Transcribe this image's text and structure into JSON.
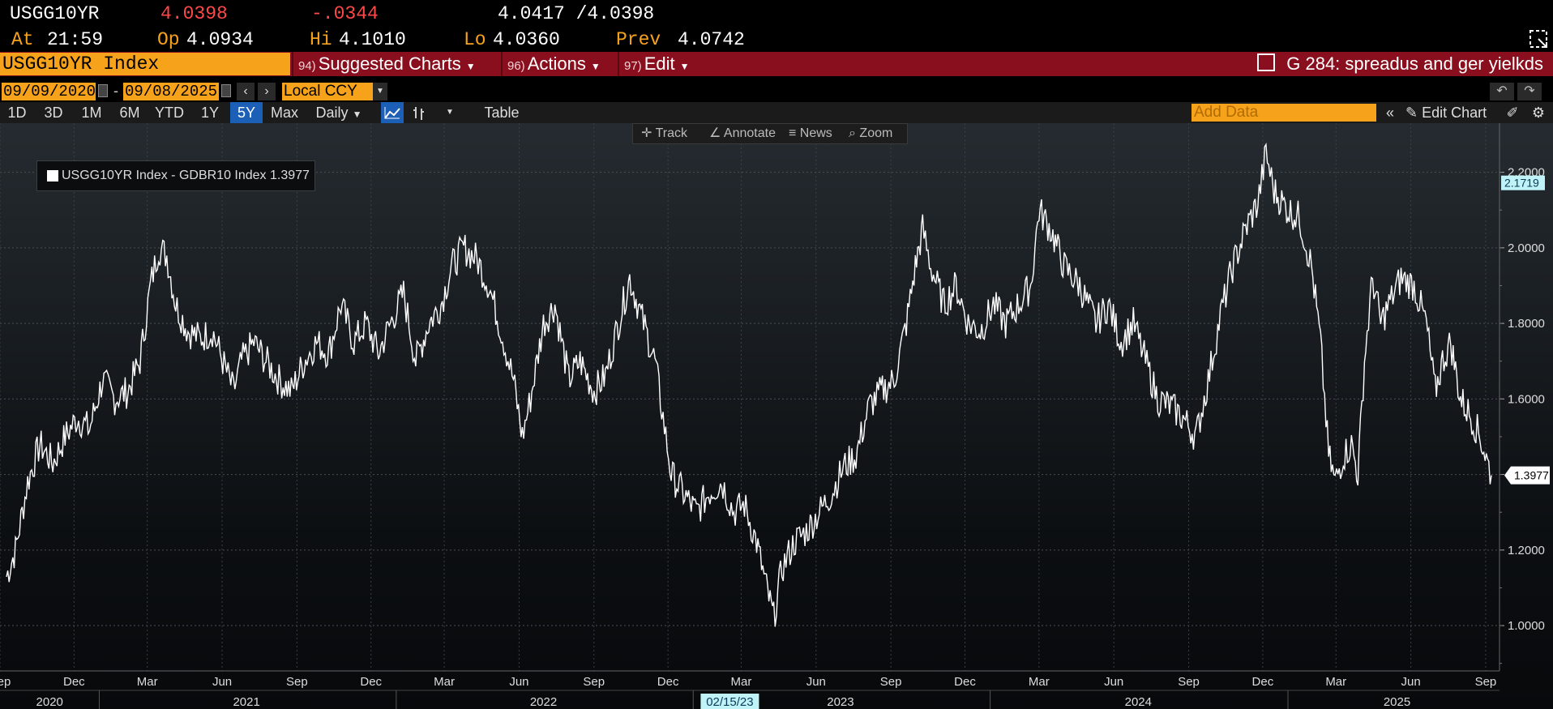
{
  "quote": {
    "ticker": "USGG10YR",
    "last": "4.0398",
    "change": "-.0344",
    "bid_ask": "4.0417 /4.0398",
    "at_label": "At",
    "at_value": "21:59",
    "open_label": "Op",
    "open_value": "4.0934",
    "high_label": "Hi",
    "high_value": "4.1010",
    "low_label": "Lo",
    "low_value": "4.0360",
    "prev_label": "Prev",
    "prev_value": "4.0742"
  },
  "cmdbar": {
    "security": "USGG10YR Index",
    "menus": [
      {
        "num": "94)",
        "label": "Suggested Charts"
      },
      {
        "num": "96)",
        "label": "Actions"
      },
      {
        "num": "97)",
        "label": "Edit"
      }
    ],
    "graph_title": "G 284: spreadus and ger yielkds"
  },
  "daterange": {
    "start": "09/09/2020",
    "sep": "-",
    "end": "09/08/2025",
    "currency": "Local CCY"
  },
  "toolbar": {
    "periods": [
      "1D",
      "3D",
      "1M",
      "6M",
      "YTD",
      "1Y",
      "5Y",
      "Max"
    ],
    "active_period": "5Y",
    "frequency": "Daily",
    "table_label": "Table",
    "add_data_placeholder": "Add Data",
    "edit_chart_label": "Edit Chart"
  },
  "chart_tools": [
    "Track",
    "Annotate",
    "News",
    "Zoom"
  ],
  "colors": {
    "accent_orange": "#f7a21b",
    "bar_red": "#8a0f1e",
    "series_line": "#ffffff",
    "marker_cyan": "#bff3f7",
    "active_blue": "#1c5fb7"
  },
  "chart_data": {
    "type": "line",
    "legend": "USGG10YR Index - GDBR10 Index 1.3977",
    "series": [
      {
        "name": "USGG10YR Index - GDBR10 Index",
        "last_value": "1.3977",
        "points": [
          [
            "2020-09-09",
            1.13
          ],
          [
            "2020-09-20",
            1.2
          ],
          [
            "2020-10-05",
            1.38
          ],
          [
            "2020-10-20",
            1.48
          ],
          [
            "2020-11-05",
            1.43
          ],
          [
            "2020-11-20",
            1.5
          ],
          [
            "2020-12-05",
            1.55
          ],
          [
            "2020-12-20",
            1.52
          ],
          [
            "2021-01-05",
            1.65
          ],
          [
            "2021-01-20",
            1.6
          ],
          [
            "2021-02-05",
            1.62
          ],
          [
            "2021-02-20",
            1.7
          ],
          [
            "2021-03-05",
            1.9
          ],
          [
            "2021-03-15",
            2.0
          ],
          [
            "2021-03-25",
            1.98
          ],
          [
            "2021-04-05",
            1.85
          ],
          [
            "2021-04-20",
            1.78
          ],
          [
            "2021-05-05",
            1.76
          ],
          [
            "2021-05-20",
            1.78
          ],
          [
            "2021-06-05",
            1.68
          ],
          [
            "2021-06-15",
            1.62
          ],
          [
            "2021-06-25",
            1.7
          ],
          [
            "2021-07-10",
            1.75
          ],
          [
            "2021-07-25",
            1.7
          ],
          [
            "2021-08-10",
            1.65
          ],
          [
            "2021-08-25",
            1.62
          ],
          [
            "2021-09-10",
            1.7
          ],
          [
            "2021-09-25",
            1.75
          ],
          [
            "2021-10-10",
            1.72
          ],
          [
            "2021-10-25",
            1.85
          ],
          [
            "2021-11-10",
            1.75
          ],
          [
            "2021-11-25",
            1.8
          ],
          [
            "2021-12-10",
            1.72
          ],
          [
            "2021-12-25",
            1.8
          ],
          [
            "2022-01-10",
            1.88
          ],
          [
            "2022-01-25",
            1.7
          ],
          [
            "2022-02-10",
            1.8
          ],
          [
            "2022-02-25",
            1.85
          ],
          [
            "2022-03-10",
            1.95
          ],
          [
            "2022-03-25",
            2.0
          ],
          [
            "2022-04-10",
            1.97
          ],
          [
            "2022-04-25",
            1.9
          ],
          [
            "2022-05-10",
            1.78
          ],
          [
            "2022-05-25",
            1.65
          ],
          [
            "2022-06-05",
            1.5
          ],
          [
            "2022-06-15",
            1.6
          ],
          [
            "2022-07-01",
            1.8
          ],
          [
            "2022-07-15",
            1.85
          ],
          [
            "2022-08-01",
            1.65
          ],
          [
            "2022-08-15",
            1.7
          ],
          [
            "2022-09-01",
            1.62
          ],
          [
            "2022-09-15",
            1.66
          ],
          [
            "2022-10-01",
            1.8
          ],
          [
            "2022-10-15",
            1.92
          ],
          [
            "2022-11-01",
            1.8
          ],
          [
            "2022-11-15",
            1.7
          ],
          [
            "2022-11-25",
            1.55
          ],
          [
            "2022-12-05",
            1.4
          ],
          [
            "2022-12-20",
            1.35
          ],
          [
            "2023-01-05",
            1.3
          ],
          [
            "2023-01-20",
            1.35
          ],
          [
            "2023-02-05",
            1.38
          ],
          [
            "2023-02-20",
            1.3
          ],
          [
            "2023-03-05",
            1.32
          ],
          [
            "2023-03-20",
            1.22
          ],
          [
            "2023-04-01",
            1.1
          ],
          [
            "2023-04-10",
            1.02
          ],
          [
            "2023-04-20",
            1.15
          ],
          [
            "2023-05-05",
            1.22
          ],
          [
            "2023-05-20",
            1.25
          ],
          [
            "2023-06-05",
            1.3
          ],
          [
            "2023-06-20",
            1.35
          ],
          [
            "2023-07-05",
            1.42
          ],
          [
            "2023-07-20",
            1.45
          ],
          [
            "2023-08-05",
            1.58
          ],
          [
            "2023-08-20",
            1.62
          ],
          [
            "2023-09-05",
            1.65
          ],
          [
            "2023-09-20",
            1.8
          ],
          [
            "2023-10-01",
            1.95
          ],
          [
            "2023-10-10",
            2.05
          ],
          [
            "2023-10-20",
            1.95
          ],
          [
            "2023-11-05",
            1.85
          ],
          [
            "2023-11-20",
            1.9
          ],
          [
            "2023-12-05",
            1.8
          ],
          [
            "2023-12-20",
            1.78
          ],
          [
            "2024-01-05",
            1.85
          ],
          [
            "2024-01-20",
            1.8
          ],
          [
            "2024-02-05",
            1.85
          ],
          [
            "2024-02-20",
            1.9
          ],
          [
            "2024-03-01",
            2.1
          ],
          [
            "2024-03-15",
            2.05
          ],
          [
            "2024-04-01",
            1.95
          ],
          [
            "2024-04-20",
            1.9
          ],
          [
            "2024-05-10",
            1.8
          ],
          [
            "2024-05-25",
            1.85
          ],
          [
            "2024-06-10",
            1.75
          ],
          [
            "2024-06-25",
            1.8
          ],
          [
            "2024-07-10",
            1.7
          ],
          [
            "2024-07-25",
            1.6
          ],
          [
            "2024-08-10",
            1.58
          ],
          [
            "2024-08-25",
            1.55
          ],
          [
            "2024-09-10",
            1.5
          ],
          [
            "2024-09-25",
            1.65
          ],
          [
            "2024-10-10",
            1.82
          ],
          [
            "2024-10-25",
            1.95
          ],
          [
            "2024-11-10",
            2.05
          ],
          [
            "2024-11-25",
            2.12
          ],
          [
            "2024-12-05",
            2.25
          ],
          [
            "2024-12-15",
            2.15
          ],
          [
            "2025-01-01",
            2.1
          ],
          [
            "2025-01-15",
            2.08
          ],
          [
            "2025-01-30",
            1.95
          ],
          [
            "2025-02-10",
            1.75
          ],
          [
            "2025-02-20",
            1.45
          ],
          [
            "2025-02-28",
            1.38
          ],
          [
            "2025-03-10",
            1.45
          ],
          [
            "2025-03-20",
            1.48
          ],
          [
            "2025-03-28",
            1.4
          ],
          [
            "2025-04-05",
            1.7
          ],
          [
            "2025-04-15",
            1.92
          ],
          [
            "2025-04-25",
            1.8
          ],
          [
            "2025-05-05",
            1.85
          ],
          [
            "2025-05-20",
            1.92
          ],
          [
            "2025-06-05",
            1.9
          ],
          [
            "2025-06-20",
            1.8
          ],
          [
            "2025-07-01",
            1.62
          ],
          [
            "2025-07-10",
            1.7
          ],
          [
            "2025-07-20",
            1.75
          ],
          [
            "2025-08-01",
            1.6
          ],
          [
            "2025-08-15",
            1.55
          ],
          [
            "2025-08-25",
            1.5
          ],
          [
            "2025-09-08",
            1.3977
          ]
        ]
      }
    ],
    "ylim": [
      0.88,
      2.33
    ],
    "ytick_labels": [
      "1.0000",
      "1.2000",
      "1.4000",
      "1.6000",
      "1.8000",
      "2.0000",
      "2.2000"
    ],
    "ytick_values": [
      1.0,
      1.2,
      1.4,
      1.6,
      1.8,
      2.0,
      2.2
    ],
    "x_start": "2020-09-01",
    "x_end": "2025-09-18",
    "month_ticks": [
      {
        "label": "Sep",
        "date": "2020-09-01"
      },
      {
        "label": "Dec",
        "date": "2020-12-01"
      },
      {
        "label": "Mar",
        "date": "2021-03-01"
      },
      {
        "label": "Jun",
        "date": "2021-06-01"
      },
      {
        "label": "Sep",
        "date": "2021-09-01"
      },
      {
        "label": "Dec",
        "date": "2021-12-01"
      },
      {
        "label": "Mar",
        "date": "2022-03-01"
      },
      {
        "label": "Jun",
        "date": "2022-06-01"
      },
      {
        "label": "Sep",
        "date": "2022-09-01"
      },
      {
        "label": "Dec",
        "date": "2022-12-01"
      },
      {
        "label": "Mar",
        "date": "2023-03-01"
      },
      {
        "label": "Jun",
        "date": "2023-06-01"
      },
      {
        "label": "Sep",
        "date": "2023-09-01"
      },
      {
        "label": "Dec",
        "date": "2023-12-01"
      },
      {
        "label": "Mar",
        "date": "2024-03-01"
      },
      {
        "label": "Jun",
        "date": "2024-06-01"
      },
      {
        "label": "Sep",
        "date": "2024-09-01"
      },
      {
        "label": "Dec",
        "date": "2024-12-01"
      },
      {
        "label": "Mar",
        "date": "2025-03-01"
      },
      {
        "label": "Jun",
        "date": "2025-06-01"
      },
      {
        "label": "Sep",
        "date": "2025-09-01"
      }
    ],
    "year_labels": [
      {
        "label": "2020",
        "date": "2020-11-01"
      },
      {
        "label": "2021",
        "date": "2021-07-01"
      },
      {
        "label": "2022",
        "date": "2022-07-01"
      },
      {
        "label": "2023",
        "date": "2023-07-01"
      },
      {
        "label": "2024",
        "date": "2024-07-01"
      },
      {
        "label": "2025",
        "date": "2025-05-15"
      }
    ],
    "crosshair_date_label": "02/15/23",
    "crosshair_date": "2023-02-15",
    "marker_high": "2.1719",
    "marker_high_value": 2.1719,
    "marker_last": "1.3977",
    "marker_last_value": 1.3977,
    "grid": true
  }
}
